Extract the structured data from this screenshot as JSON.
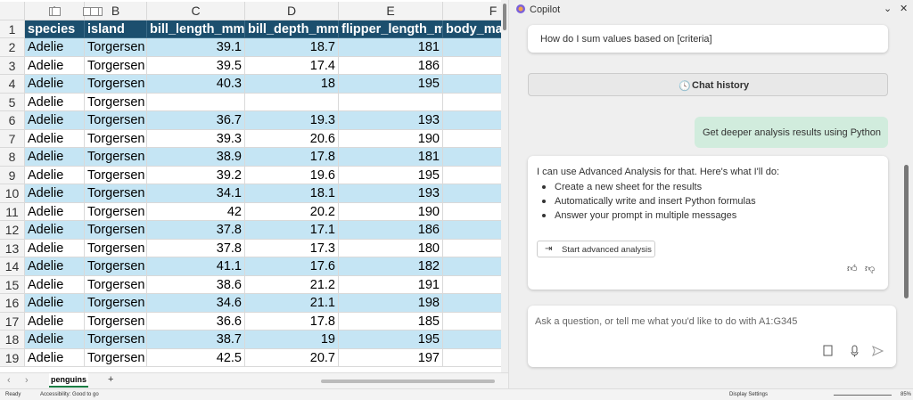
{
  "sheet": {
    "column_letters": [
      "A",
      "B",
      "C",
      "D",
      "E",
      "F"
    ],
    "row_numbers": [
      1,
      2,
      3,
      4,
      5,
      6,
      7,
      8,
      9,
      10,
      11,
      12,
      13,
      14,
      15,
      16,
      17,
      18,
      19
    ],
    "header": [
      "species",
      "island",
      "bill_length_mm",
      "bill_depth_mm",
      "flipper_length_m",
      "body_mas"
    ],
    "rows": [
      [
        "Adelie",
        "Torgersen",
        "39.1",
        "18.7",
        "181",
        "3"
      ],
      [
        "Adelie",
        "Torgersen",
        "39.5",
        "17.4",
        "186",
        "3"
      ],
      [
        "Adelie",
        "Torgersen",
        "40.3",
        "18",
        "195",
        "3"
      ],
      [
        "Adelie",
        "Torgersen",
        null,
        null,
        null,
        null
      ],
      [
        "Adelie",
        "Torgersen",
        "36.7",
        "19.3",
        "193",
        "3"
      ],
      [
        "Adelie",
        "Torgersen",
        "39.3",
        "20.6",
        "190",
        "3"
      ],
      [
        "Adelie",
        "Torgersen",
        "38.9",
        "17.8",
        "181",
        "3"
      ],
      [
        "Adelie",
        "Torgersen",
        "39.2",
        "19.6",
        "195",
        "4"
      ],
      [
        "Adelie",
        "Torgersen",
        "34.1",
        "18.1",
        "193",
        "3"
      ],
      [
        "Adelie",
        "Torgersen",
        "42",
        "20.2",
        "190",
        "4"
      ],
      [
        "Adelie",
        "Torgersen",
        "37.8",
        "17.1",
        "186",
        "3"
      ],
      [
        "Adelie",
        "Torgersen",
        "37.8",
        "17.3",
        "180",
        "3"
      ],
      [
        "Adelie",
        "Torgersen",
        "41.1",
        "17.6",
        "182",
        "3"
      ],
      [
        "Adelie",
        "Torgersen",
        "38.6",
        "21.2",
        "191",
        "3"
      ],
      [
        "Adelie",
        "Torgersen",
        "34.6",
        "21.1",
        "198",
        "4"
      ],
      [
        "Adelie",
        "Torgersen",
        "36.6",
        "17.8",
        "185",
        "3"
      ],
      [
        "Adelie",
        "Torgersen",
        "38.7",
        "19",
        "195",
        "3"
      ],
      [
        "Adelie",
        "Torgersen",
        "42.5",
        "20.7",
        "197",
        "4"
      ]
    ],
    "tab": "penguins",
    "add_tab": "+"
  },
  "status_bar": {
    "ready": "Ready",
    "accessibility": "Accessibility: Good to go",
    "display_settings": "Display Settings",
    "zoom": "85%"
  },
  "copilot": {
    "title": "Copilot",
    "suggestion": "How do I sum values based on [criteria]",
    "chat_history": "Chat history",
    "user_message": "Get deeper analysis results using Python",
    "response": {
      "intro": "I can use Advanced Analysis for that. Here's what I'll do:",
      "bullets": [
        "Create a new sheet for the results",
        "Automatically write and insert Python formulas",
        "Answer your prompt in multiple messages"
      ],
      "button": "Start advanced analysis"
    },
    "input_placeholder": "Ask a question, or tell me what you'd like to do with A1:G345"
  }
}
